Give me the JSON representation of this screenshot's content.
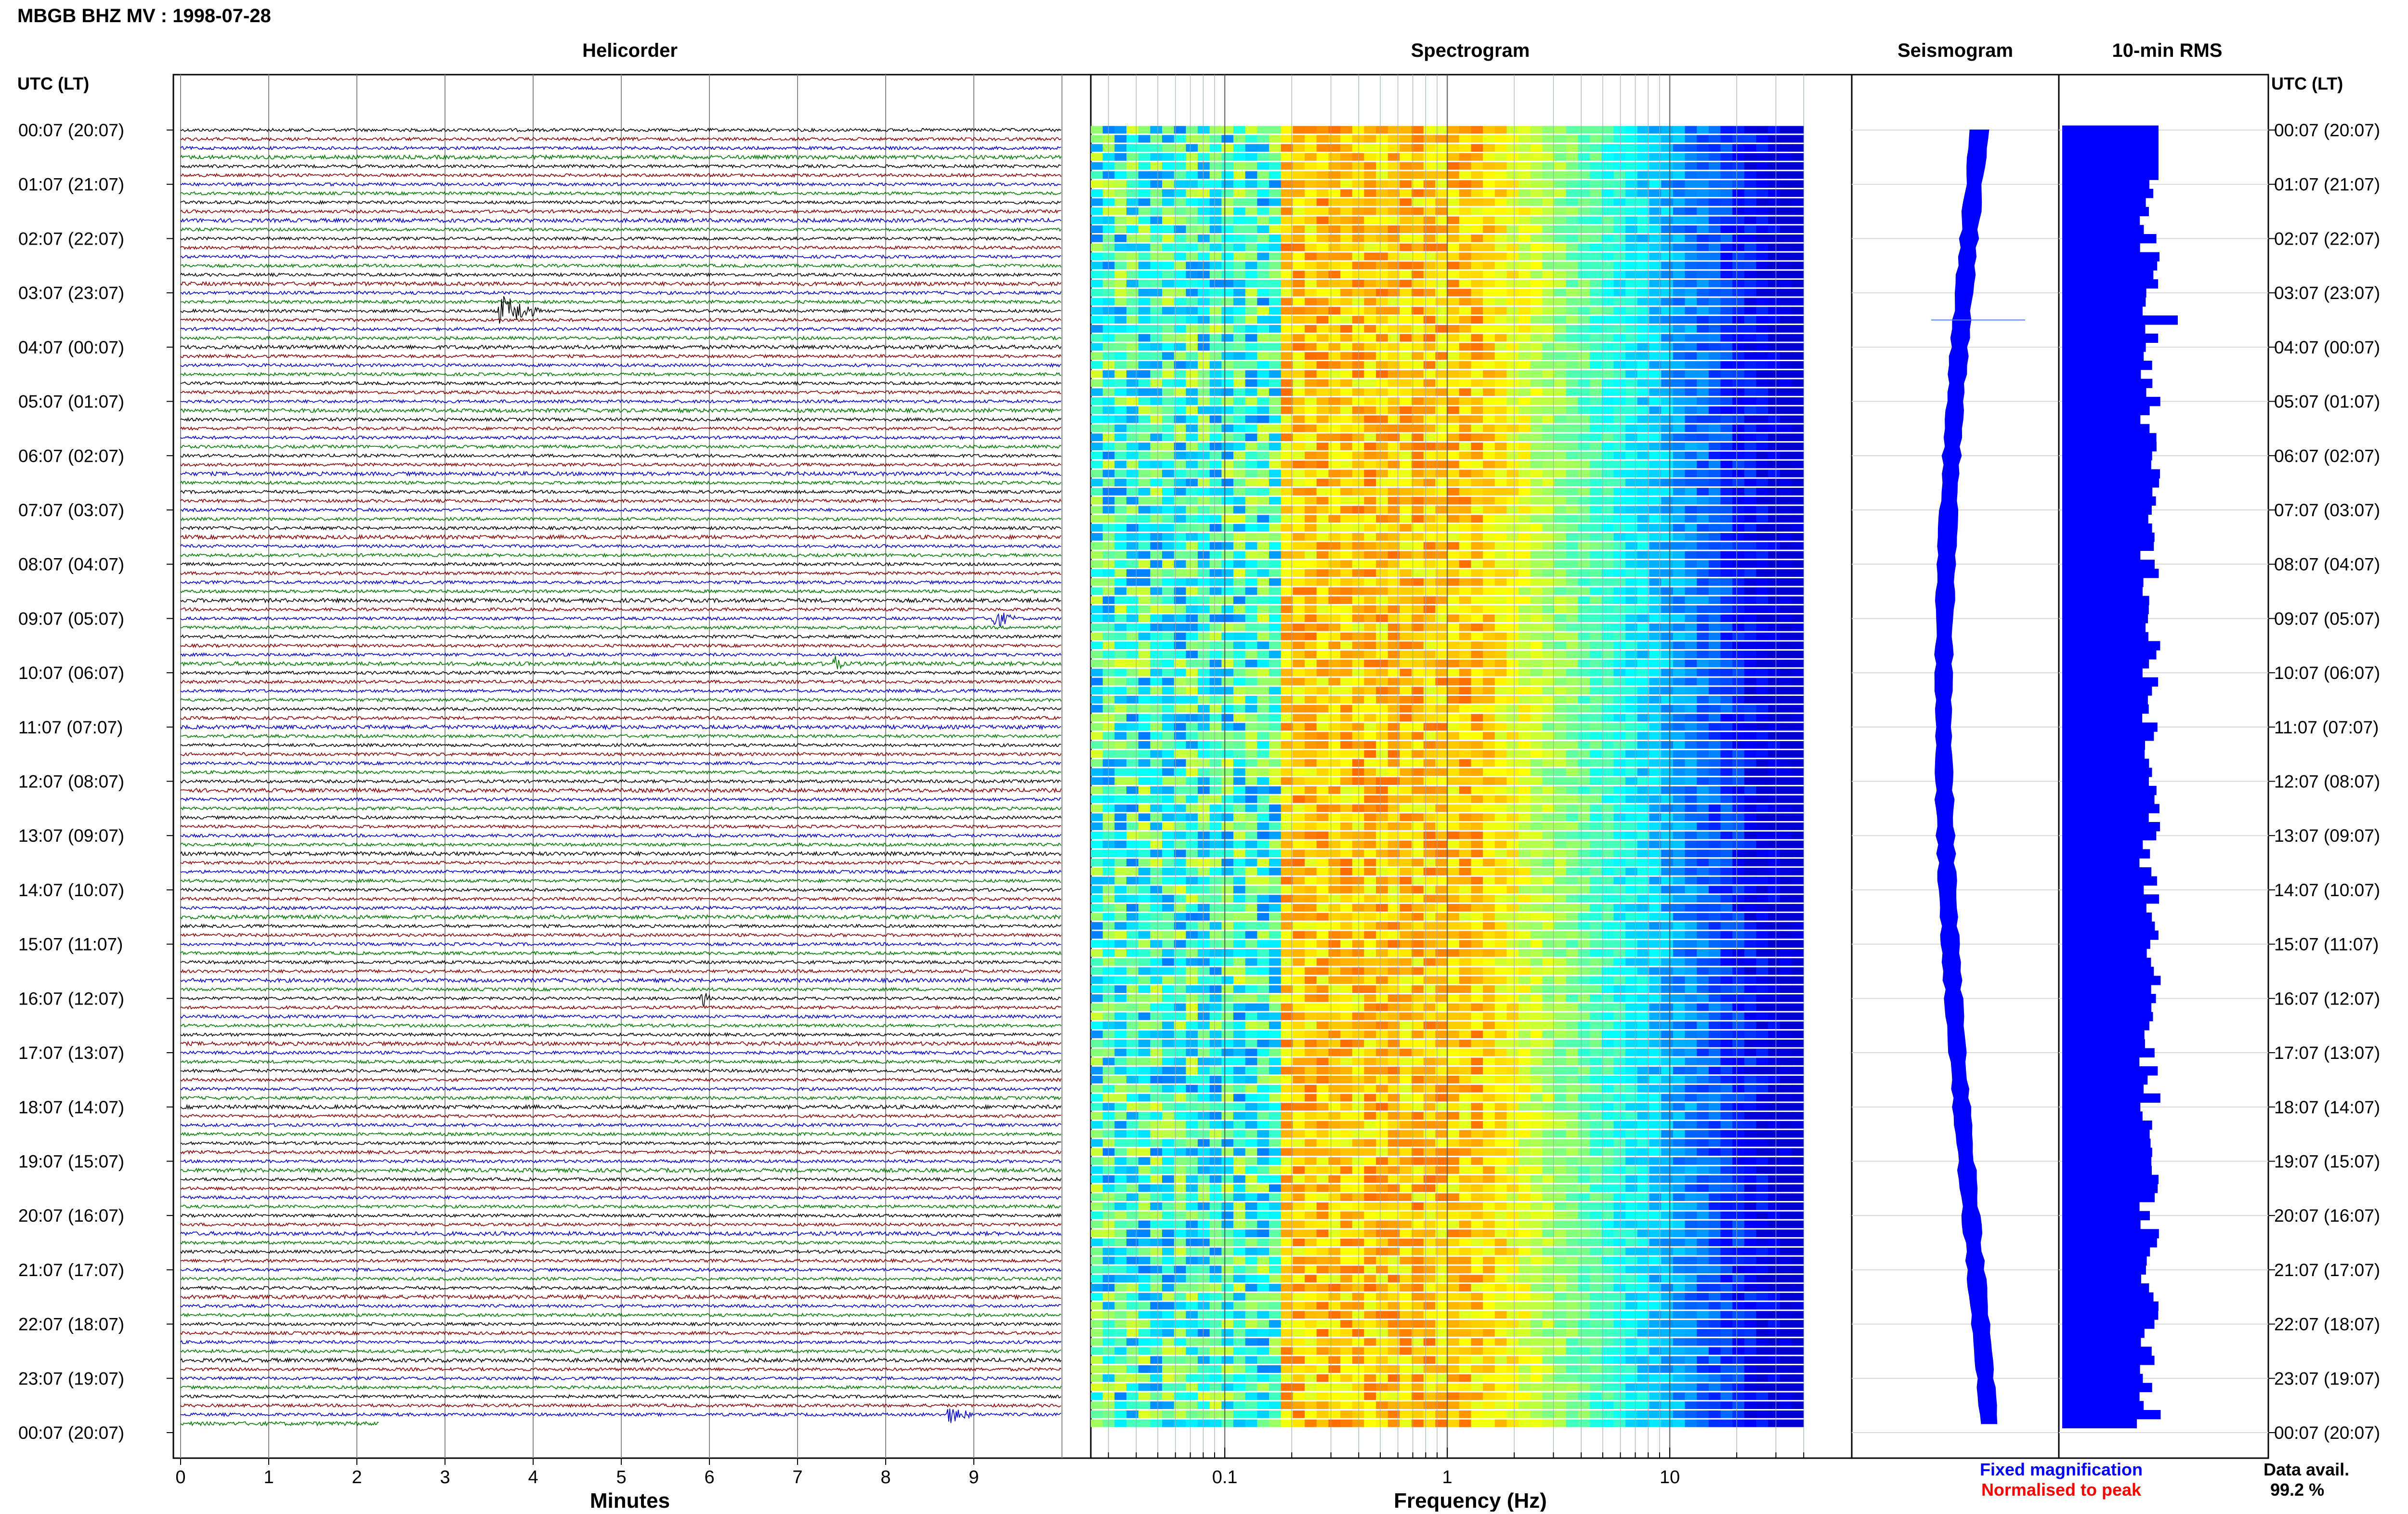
{
  "title": "MBGB BHZ MV : 1998-07-28",
  "left_time_axis_label": "UTC (LT)",
  "right_time_axis_label": "UTC (LT)",
  "time_labels": [
    "00:07 (20:07)",
    "01:07 (21:07)",
    "02:07 (22:07)",
    "03:07 (23:07)",
    "04:07 (00:07)",
    "05:07 (01:07)",
    "06:07 (02:07)",
    "07:07 (03:07)",
    "08:07 (04:07)",
    "09:07 (05:07)",
    "10:07 (06:07)",
    "11:07 (07:07)",
    "12:07 (08:07)",
    "13:07 (09:07)",
    "14:07 (10:07)",
    "15:07 (11:07)",
    "16:07 (12:07)",
    "17:07 (13:07)",
    "18:07 (14:07)",
    "19:07 (15:07)",
    "20:07 (16:07)",
    "21:07 (17:07)",
    "22:07 (18:07)",
    "23:07 (19:07)",
    "00:07 (20:07)"
  ],
  "panels": {
    "helicorder": {
      "title": "Helicorder",
      "xlabel": "Minutes"
    },
    "spectrogram": {
      "title": "Spectrogram",
      "xlabel": "Frequency (Hz)"
    },
    "seismogram": {
      "title": "Seismogram"
    },
    "rms": {
      "title": "10-min RMS"
    }
  },
  "legend": {
    "fixed": "Fixed magnification",
    "normalised": "Normalised to peak"
  },
  "data_avail": {
    "label": "Data avail.",
    "value": "99.2 %"
  },
  "colors": {
    "trace_cycle": [
      "#000000",
      "#8b0000",
      "#0000c8",
      "#007a00"
    ],
    "fixed": "#0000ff",
    "normalised": "#ff0000",
    "rms_bar": "#0000ff"
  },
  "chart_data": [
    {
      "type": "line",
      "name": "helicorder",
      "x_ticks": [
        "0",
        "1",
        "2",
        "3",
        "4",
        "5",
        "6",
        "7",
        "8",
        "9"
      ],
      "xlim": [
        0,
        10
      ],
      "rows": 144,
      "row_minutes": 10,
      "events": [
        {
          "row": 20,
          "minute": 3.6,
          "duration": 0.5,
          "amplitude": 2.6
        },
        {
          "row": 54,
          "minute": 9.2,
          "duration": 0.3,
          "amplitude": 1.4
        },
        {
          "row": 59,
          "minute": 7.4,
          "duration": 0.12,
          "amplitude": 1.2
        },
        {
          "row": 96,
          "minute": 5.9,
          "duration": 0.12,
          "amplitude": 1.4
        },
        {
          "row": 142,
          "minute": 8.7,
          "duration": 0.3,
          "amplitude": 1.3
        }
      ],
      "last_row_end_minute": 2.25
    },
    {
      "type": "heatmap",
      "name": "spectrogram",
      "x_scale": "log",
      "xlim": [
        0.025,
        50
      ],
      "x_ticks": [
        "0.1",
        "1",
        "10"
      ],
      "rows": 144
    },
    {
      "type": "line",
      "name": "seismogram",
      "description_axis": "time",
      "rows": 144,
      "spike_row": 21
    },
    {
      "type": "bar",
      "name": "10-min RMS",
      "orientation": "horizontal",
      "rows": 144,
      "peak_row": 21
    }
  ]
}
